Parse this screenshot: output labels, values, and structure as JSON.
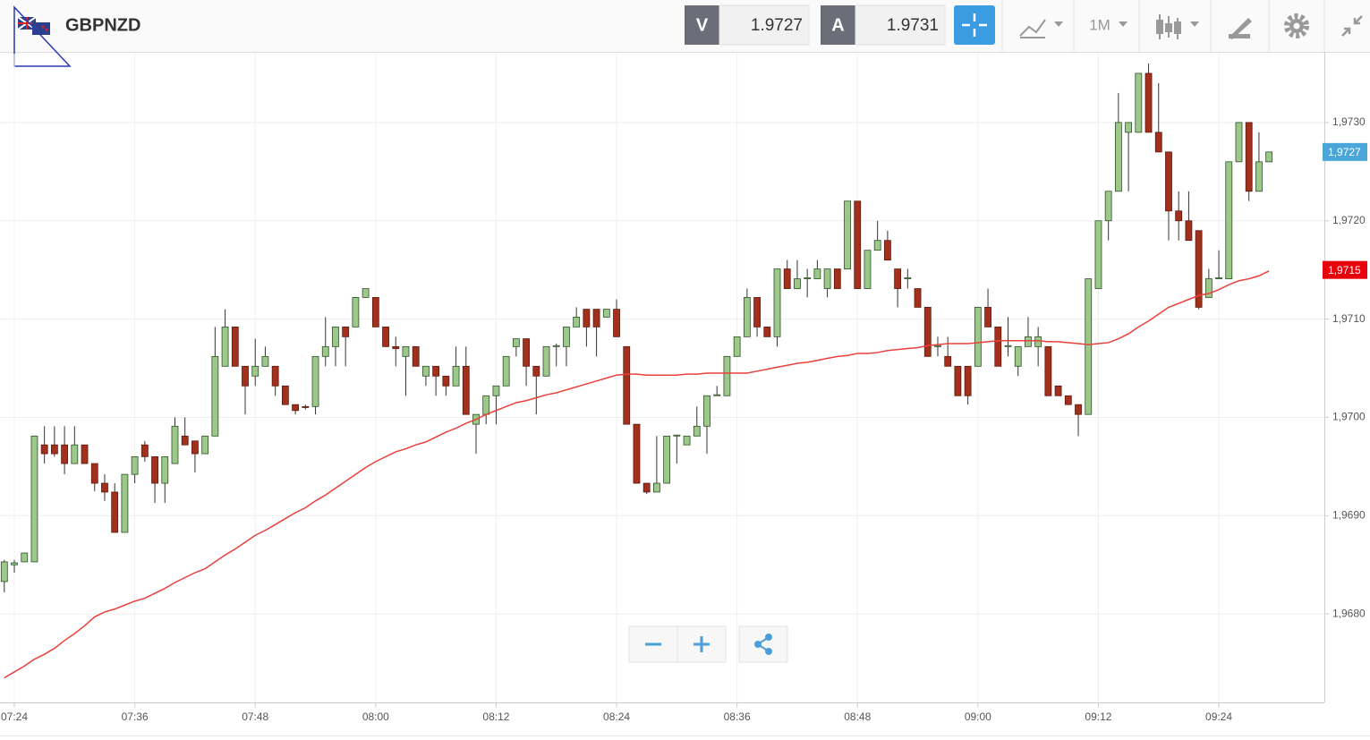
{
  "header": {
    "symbol": "GBPNZD",
    "sell_label": "V",
    "sell_price": "1.9727",
    "buy_label": "A",
    "buy_price": "1.9731",
    "timeframe": "1M"
  },
  "chart_data": {
    "type": "candlestick",
    "categories": [
      null,
      "07:24",
      null,
      null,
      null,
      null,
      null,
      null,
      null,
      null,
      null,
      null,
      null,
      "07:36",
      null,
      null,
      null,
      null,
      null,
      null,
      null,
      null,
      null,
      null,
      null,
      "07:48",
      null,
      null,
      null,
      null,
      null,
      null,
      null,
      null,
      null,
      null,
      null,
      "08:00",
      null,
      null,
      null,
      null,
      null,
      null,
      null,
      null,
      null,
      null,
      null,
      "08:12",
      null,
      null,
      null,
      null,
      null,
      null,
      null,
      null,
      null,
      null,
      null,
      "08:24",
      null,
      null,
      null,
      null,
      null,
      null,
      null,
      null,
      null,
      null,
      null,
      "08:36",
      null,
      null,
      null,
      null,
      null,
      null,
      null,
      null,
      null,
      null,
      null,
      "08:48",
      null,
      null,
      null,
      null,
      null,
      null,
      null,
      null,
      null,
      null,
      null,
      "09:00",
      null,
      null,
      null,
      null,
      null,
      null,
      null,
      null,
      null,
      null,
      null,
      "09:12",
      null,
      null,
      null,
      null,
      null,
      null,
      null,
      null,
      null,
      null,
      null,
      "09:24",
      null,
      null,
      null,
      null,
      null
    ],
    "open": [
      1.96833,
      1.9685,
      1.96853,
      1.96853,
      1.96972,
      1.96972,
      1.96972,
      1.96953,
      1.96972,
      1.96953,
      1.96933,
      1.96924,
      1.96883,
      1.96942,
      1.96972,
      1.9696,
      1.96933,
      1.96953,
      1.96981,
      1.96976,
      1.96963,
      1.96981,
      1.97052,
      1.97092,
      1.97052,
      1.97042,
      1.97052,
      1.97052,
      1.97032,
      1.97013,
      1.97011,
      1.97011,
      1.97062,
      1.97072,
      1.97092,
      1.97092,
      1.97122,
      1.97122,
      1.97092,
      1.97072,
      1.97062,
      1.97072,
      1.97042,
      1.97052,
      1.97042,
      1.97032,
      1.97052,
      1.96993,
      1.97003,
      1.97022,
      1.97032,
      1.97072,
      1.9708,
      1.97052,
      1.97042,
      1.97072,
      1.97072,
      1.97092,
      1.9711,
      1.9711,
      1.97102,
      1.9711,
      1.97072,
      1.96993,
      1.96933,
      1.96924,
      1.96933,
      1.96981,
      1.96972,
      1.96981,
      1.96991,
      1.97022,
      1.97022,
      1.97062,
      1.97082,
      1.97122,
      1.97092,
      1.97082,
      1.97151,
      1.97131,
      1.97141,
      1.97141,
      1.97131,
      1.97151,
      1.97151,
      1.9722,
      1.97131,
      1.9717,
      1.9718,
      1.97151,
      1.97141,
      1.97131,
      1.97112,
      1.97072,
      1.97062,
      1.97052,
      1.97052,
      1.97052,
      1.97112,
      1.97092,
      1.97072,
      1.97052,
      1.97072,
      1.97072,
      1.97072,
      1.97032,
      1.97022,
      1.97013,
      1.97003,
      1.97131,
      1.972,
      1.9723,
      1.9729,
      1.9729,
      1.9735,
      1.9729,
      1.9727,
      1.9721,
      1.972,
      1.9719,
      1.97122,
      1.97141,
      1.97141,
      1.9726,
      1.973,
      1.9723,
      1.9726
    ],
    "high": [
      1.96855,
      1.96855,
      1.96862,
      1.96981,
      1.96991,
      1.96991,
      1.96991,
      1.96991,
      1.96972,
      1.96953,
      1.96942,
      1.96933,
      1.96942,
      1.9696,
      1.96976,
      1.9696,
      1.9696,
      1.97,
      1.97,
      1.96976,
      1.96981,
      1.97092,
      1.9711,
      1.97092,
      1.97052,
      1.9708,
      1.97072,
      1.97052,
      1.97032,
      1.97013,
      1.97013,
      1.97062,
      1.97102,
      1.97092,
      1.97092,
      1.97122,
      1.97131,
      1.97122,
      1.97092,
      1.97082,
      1.97072,
      1.97072,
      1.97052,
      1.97052,
      1.97042,
      1.97072,
      1.97072,
      1.97003,
      1.97022,
      1.97032,
      1.97062,
      1.9708,
      1.9708,
      1.97052,
      1.97072,
      1.97075,
      1.97092,
      1.97112,
      1.9711,
      1.9711,
      1.9711,
      1.9712,
      1.97072,
      1.96993,
      1.96933,
      1.96981,
      1.96981,
      1.96982,
      1.96981,
      1.97011,
      1.97022,
      1.97032,
      1.97062,
      1.97082,
      1.97131,
      1.97122,
      1.97092,
      1.97151,
      1.9716,
      1.9716,
      1.97151,
      1.9716,
      1.97151,
      1.97151,
      1.9722,
      1.9722,
      1.9717,
      1.972,
      1.9719,
      1.97151,
      1.97151,
      1.97131,
      1.97112,
      1.97082,
      1.97082,
      1.97052,
      1.97052,
      1.97112,
      1.97131,
      1.97092,
      1.97102,
      1.97072,
      1.97102,
      1.97092,
      1.97072,
      1.97032,
      1.97022,
      1.97013,
      1.97141,
      1.972,
      1.9723,
      1.9733,
      1.973,
      1.9735,
      1.9736,
      1.9734,
      1.9727,
      1.9723,
      1.9723,
      1.9719,
      1.97151,
      1.9717,
      1.9726,
      1.973,
      1.973,
      1.9729,
      1.9727
    ],
    "low": [
      1.96822,
      1.96842,
      1.96853,
      1.96853,
      1.96953,
      1.9696,
      1.96942,
      1.96953,
      1.96953,
      1.96925,
      1.96915,
      1.96883,
      1.96883,
      1.96933,
      1.96955,
      1.96913,
      1.96913,
      1.96953,
      1.96972,
      1.96944,
      1.96963,
      1.96981,
      1.97052,
      1.97052,
      1.97003,
      1.97032,
      1.97052,
      1.97022,
      1.97013,
      1.97003,
      1.97008,
      1.97003,
      1.97052,
      1.97052,
      1.97052,
      1.97092,
      1.97122,
      1.97092,
      1.97072,
      1.97052,
      1.97022,
      1.97052,
      1.97032,
      1.97022,
      1.97022,
      1.97032,
      1.97003,
      1.96963,
      1.96993,
      1.96993,
      1.97032,
      1.97062,
      1.97032,
      1.97003,
      1.97042,
      1.97052,
      1.97052,
      1.97092,
      1.97072,
      1.97062,
      1.97102,
      1.97082,
      1.96993,
      1.96933,
      1.96922,
      1.96924,
      1.96933,
      1.96953,
      1.96972,
      1.96981,
      1.96963,
      1.97022,
      1.97022,
      1.97062,
      1.97082,
      1.97082,
      1.97082,
      1.97072,
      1.97131,
      1.97131,
      1.97122,
      1.97141,
      1.97122,
      1.97131,
      1.97151,
      1.97131,
      1.97131,
      1.9717,
      1.9716,
      1.97112,
      1.97131,
      1.97112,
      1.97062,
      1.97062,
      1.97052,
      1.97022,
      1.97013,
      1.97052,
      1.97092,
      1.97052,
      1.97062,
      1.97042,
      1.97072,
      1.97052,
      1.97022,
      1.97022,
      1.97013,
      1.96981,
      1.97003,
      1.97131,
      1.9718,
      1.9723,
      1.9723,
      1.9729,
      1.9729,
      1.9727,
      1.9718,
      1.9718,
      1.9718,
      1.9711,
      1.97122,
      1.97141,
      1.97141,
      1.9726,
      1.9722,
      1.9723,
      1.9726
    ],
    "close": [
      1.96853,
      1.96852,
      1.96862,
      1.96981,
      1.96963,
      1.96963,
      1.96953,
      1.96972,
      1.96953,
      1.96933,
      1.96924,
      1.96883,
      1.96942,
      1.9696,
      1.9696,
      1.96933,
      1.9696,
      1.96991,
      1.96972,
      1.96963,
      1.96981,
      1.97062,
      1.97092,
      1.97052,
      1.97032,
      1.97052,
      1.97062,
      1.97032,
      1.97013,
      1.97007,
      1.9701,
      1.97062,
      1.97072,
      1.97092,
      1.97082,
      1.97122,
      1.97131,
      1.97092,
      1.97072,
      1.9707,
      1.97072,
      1.97052,
      1.97052,
      1.97042,
      1.97032,
      1.97052,
      1.97003,
      1.97003,
      1.97022,
      1.97032,
      1.97062,
      1.9708,
      1.97052,
      1.97042,
      1.97072,
      1.97073,
      1.97092,
      1.97102,
      1.97092,
      1.97092,
      1.9711,
      1.97082,
      1.96993,
      1.96933,
      1.96924,
      1.96933,
      1.96981,
      1.96982,
      1.96981,
      1.96991,
      1.97022,
      1.97023,
      1.97062,
      1.97082,
      1.97122,
      1.97092,
      1.97082,
      1.97151,
      1.97131,
      1.97141,
      1.97142,
      1.97151,
      1.97151,
      1.97131,
      1.9722,
      1.97131,
      1.9717,
      1.9718,
      1.9716,
      1.97131,
      1.97142,
      1.97112,
      1.97062,
      1.97073,
      1.97052,
      1.97022,
      1.97022,
      1.97112,
      1.97092,
      1.97052,
      1.97073,
      1.97072,
      1.97082,
      1.97082,
      1.97022,
      1.97022,
      1.97013,
      1.97003,
      1.97141,
      1.972,
      1.9723,
      1.973,
      1.973,
      1.9735,
      1.9729,
      1.9727,
      1.9721,
      1.972,
      1.9718,
      1.97112,
      1.97141,
      1.97142,
      1.9726,
      1.973,
      1.9723,
      1.9726,
      1.9727
    ],
    "up_color": "#9cc98a",
    "down_color": "#a3301c",
    "moving_average": {
      "color": "#e8413c",
      "values": [
        1.96735,
        1.96741,
        1.96747,
        1.96754,
        1.96759,
        1.96765,
        1.96773,
        1.9678,
        1.96788,
        1.96797,
        1.96802,
        1.96805,
        1.96809,
        1.96813,
        1.96816,
        1.96821,
        1.96826,
        1.96832,
        1.96837,
        1.96842,
        1.96846,
        1.96853,
        1.9686,
        1.96866,
        1.96873,
        1.9688,
        1.96885,
        1.96891,
        1.96897,
        1.96903,
        1.96908,
        1.96915,
        1.96921,
        1.96928,
        1.96935,
        1.96942,
        1.96949,
        1.96955,
        1.9696,
        1.96965,
        1.96968,
        1.96972,
        1.96975,
        1.9698,
        1.96985,
        1.96989,
        1.96994,
        1.96998,
        1.97003,
        1.97007,
        1.97011,
        1.97015,
        1.97017,
        1.9702,
        1.97023,
        1.97025,
        1.97028,
        1.97031,
        1.97034,
        1.97037,
        1.9704,
        1.97043,
        1.97044,
        1.97044,
        1.97043,
        1.97043,
        1.97043,
        1.97043,
        1.97044,
        1.97044,
        1.97045,
        1.97045,
        1.97045,
        1.97045,
        1.97045,
        1.97047,
        1.97049,
        1.97051,
        1.97053,
        1.97055,
        1.97056,
        1.97058,
        1.9706,
        1.97062,
        1.97063,
        1.97065,
        1.97065,
        1.97066,
        1.97068,
        1.97069,
        1.9707,
        1.97071,
        1.97073,
        1.97074,
        1.97075,
        1.97075,
        1.97075,
        1.97076,
        1.97077,
        1.97078,
        1.97078,
        1.97078,
        1.97078,
        1.97078,
        1.97077,
        1.97077,
        1.97076,
        1.97075,
        1.97074,
        1.97075,
        1.97076,
        1.9708,
        1.97085,
        1.97092,
        1.97098,
        1.97105,
        1.97112,
        1.97116,
        1.9712,
        1.97124,
        1.97126,
        1.9713,
        1.97135,
        1.97139,
        1.97141,
        1.97144,
        1.97149
      ]
    },
    "ylim": [
      1.9671,
      1.9737
    ],
    "yticks": [
      {
        "value": 1.968,
        "label": "1,9680"
      },
      {
        "value": 1.969,
        "label": "1,9690"
      },
      {
        "value": 1.97,
        "label": "1,9700"
      },
      {
        "value": 1.971,
        "label": "1,9710"
      },
      {
        "value": 1.972,
        "label": "1,9720"
      },
      {
        "value": 1.973,
        "label": "1,9730"
      }
    ],
    "price_tags": [
      {
        "value": 1.9727,
        "label": "1,9727",
        "color": "#4aa6d9"
      },
      {
        "value": 1.9715,
        "label": "1,9715",
        "color": "#e8000b"
      }
    ],
    "grid": true
  }
}
